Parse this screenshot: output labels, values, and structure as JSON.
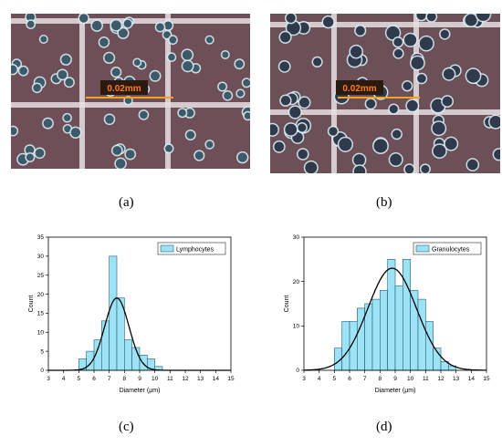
{
  "panels": {
    "a": {
      "caption": "(a)",
      "scale_label": "0.02mm"
    },
    "b": {
      "caption": "(b)",
      "scale_label": "0.02mm"
    },
    "c": {
      "caption": "(c)"
    },
    "d": {
      "caption": "(d)"
    }
  },
  "colors": {
    "bar_fill": "#9ee3f5",
    "bar_stroke": "#1c5f7a",
    "fit_line": "#000000",
    "scale_label_bg": "#2b1a10",
    "scale_label_text": "#ff7a1a",
    "scale_bar": "#f5a020"
  },
  "chart_data": [
    {
      "type": "bar",
      "panel": "c",
      "legend": "Lymphocytes",
      "legend_position": "top-right",
      "xlabel": "Diameter (μm)",
      "ylabel": "Count",
      "xlim": [
        3,
        15
      ],
      "ylim": [
        0,
        35
      ],
      "xticks": [
        3,
        4,
        5,
        6,
        7,
        8,
        9,
        10,
        11,
        12,
        13,
        14,
        15
      ],
      "yticks": [
        0,
        5,
        10,
        15,
        20,
        25,
        30,
        35
      ],
      "bin_width": 0.5,
      "bin_starts": [
        5.0,
        5.5,
        6.0,
        6.5,
        7.0,
        7.5,
        8.0,
        8.5,
        9.0,
        9.5,
        10.0
      ],
      "counts": [
        3,
        5,
        8,
        13,
        30,
        19,
        8,
        6,
        4,
        3,
        1
      ],
      "fit": {
        "type": "gaussian",
        "mean": 7.5,
        "sigma": 0.8,
        "peak": 19
      },
      "grid": false
    },
    {
      "type": "bar",
      "panel": "d",
      "legend": "Granulocytes",
      "legend_position": "top-right",
      "xlabel": "Diameter (μm)",
      "ylabel": "Count",
      "xlim": [
        3,
        15
      ],
      "ylim": [
        0,
        30
      ],
      "xticks": [
        3,
        4,
        5,
        6,
        7,
        8,
        9,
        10,
        11,
        12,
        13,
        14,
        15
      ],
      "yticks": [
        0,
        10,
        20,
        30
      ],
      "bin_width": 0.5,
      "bin_starts": [
        5.0,
        5.5,
        6.0,
        6.5,
        7.0,
        7.5,
        8.0,
        8.5,
        9.0,
        9.5,
        10.0,
        10.5,
        11.0,
        11.5,
        12.0,
        12.5
      ],
      "counts": [
        5,
        11,
        11,
        14,
        15,
        16,
        18,
        25,
        19,
        25,
        18,
        16,
        11,
        5,
        2,
        1
      ],
      "fit": {
        "type": "gaussian",
        "mean": 8.8,
        "sigma": 1.6,
        "peak": 23
      },
      "grid": false
    }
  ]
}
